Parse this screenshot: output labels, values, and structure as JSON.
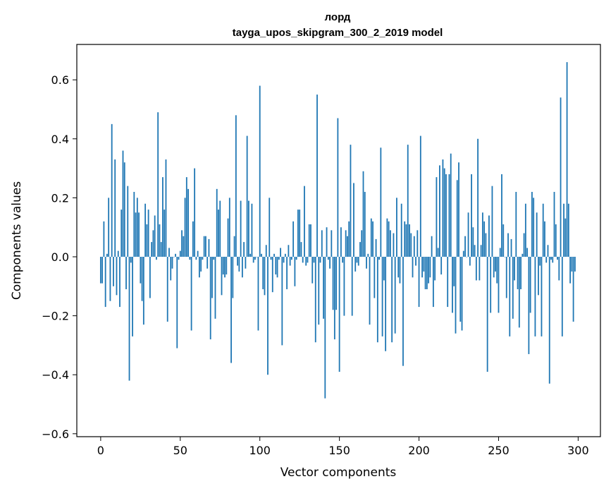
{
  "chart_data": {
    "type": "bar",
    "title": "лорд",
    "subtitle": "tayga_upos_skipgram_300_2_2019 model",
    "xlabel": "Vector components",
    "ylabel": "Components values",
    "xlim": [
      -15,
      314
    ],
    "ylim": [
      -0.61,
      0.72
    ],
    "xticks": [
      0,
      50,
      100,
      150,
      200,
      250,
      300
    ],
    "yticks": [
      -0.6,
      -0.4,
      -0.2,
      0.0,
      0.2,
      0.4,
      0.6
    ],
    "ytick_labels": [
      "−0.6",
      "−0.4",
      "−0.2",
      "0.0",
      "0.2",
      "0.4",
      "0.6"
    ],
    "xtick_labels": [
      "0",
      "50",
      "100",
      "150",
      "200",
      "250",
      "300"
    ],
    "grid": false,
    "bar_color": "#1f77b4",
    "values": [
      -0.09,
      -0.09,
      0.12,
      -0.17,
      0.01,
      0.2,
      -0.15,
      0.45,
      -0.1,
      0.33,
      -0.13,
      0.02,
      -0.17,
      0.16,
      0.36,
      0.32,
      -0.11,
      0.24,
      -0.42,
      -0.02,
      -0.27,
      0.22,
      0.15,
      0.2,
      0.15,
      -0.09,
      -0.15,
      -0.23,
      0.18,
      0.11,
      0.16,
      -0.14,
      0.05,
      0.09,
      0.14,
      -0.01,
      0.49,
      0.11,
      0.05,
      0.27,
      0.16,
      0.33,
      -0.22,
      0.03,
      -0.08,
      -0.04,
      0.0,
      0.01,
      -0.31,
      -0.01,
      0.02,
      0.09,
      0.07,
      0.2,
      0.27,
      0.23,
      -0.01,
      -0.25,
      0.12,
      0.3,
      -0.01,
      0.02,
      -0.07,
      -0.05,
      -0.01,
      0.07,
      0.07,
      -0.04,
      0.06,
      -0.28,
      -0.14,
      -0.01,
      -0.21,
      0.23,
      0.16,
      0.19,
      -0.13,
      -0.06,
      -0.07,
      -0.06,
      0.13,
      0.2,
      -0.36,
      -0.14,
      0.07,
      0.48,
      -0.03,
      -0.05,
      0.19,
      -0.07,
      0.05,
      -0.04,
      0.41,
      0.19,
      0.01,
      0.18,
      -0.02,
      -0.01,
      0.0,
      -0.25,
      0.58,
      0.01,
      -0.11,
      -0.13,
      0.04,
      -0.4,
      0.2,
      -0.01,
      -0.12,
      0.01,
      -0.06,
      -0.07,
      -0.01,
      0.03,
      -0.3,
      -0.02,
      0.01,
      -0.11,
      0.04,
      -0.03,
      -0.01,
      0.12,
      -0.1,
      -0.01,
      0.16,
      0.16,
      0.05,
      -0.02,
      0.24,
      -0.03,
      -0.02,
      0.11,
      0.11,
      -0.09,
      -0.02,
      -0.29,
      0.55,
      -0.23,
      -0.02,
      0.09,
      -0.21,
      -0.48,
      0.1,
      -0.01,
      -0.04,
      0.09,
      -0.18,
      -0.28,
      -0.18,
      0.47,
      -0.39,
      0.1,
      -0.02,
      -0.2,
      0.09,
      0.07,
      0.12,
      0.38,
      -0.2,
      0.25,
      -0.05,
      -0.02,
      -0.03,
      0.05,
      0.09,
      0.29,
      0.22,
      -0.04,
      0.01,
      -0.23,
      0.13,
      0.12,
      -0.14,
      0.06,
      -0.29,
      -0.01,
      0.37,
      -0.27,
      -0.08,
      -0.32,
      0.13,
      0.12,
      0.09,
      -0.29,
      0.08,
      -0.26,
      0.2,
      -0.07,
      -0.09,
      0.18,
      -0.37,
      0.12,
      0.11,
      0.38,
      0.11,
      0.08,
      -0.07,
      0.07,
      -0.03,
      0.09,
      -0.17,
      0.41,
      -0.07,
      -0.05,
      -0.11,
      -0.11,
      -0.09,
      -0.07,
      0.07,
      -0.17,
      -0.08,
      0.27,
      0.03,
      0.31,
      -0.06,
      0.33,
      0.3,
      0.28,
      -0.17,
      0.28,
      0.35,
      -0.19,
      -0.1,
      -0.26,
      0.26,
      0.32,
      -0.22,
      -0.25,
      0.02,
      0.07,
      0.0,
      0.15,
      -0.03,
      0.28,
      0.1,
      0.04,
      -0.08,
      0.4,
      -0.08,
      0.04,
      0.15,
      0.12,
      0.08,
      -0.39,
      0.14,
      -0.19,
      0.24,
      -0.07,
      -0.05,
      -0.09,
      -0.19,
      0.03,
      0.28,
      0.11,
      0.0,
      -0.14,
      0.08,
      -0.27,
      0.06,
      -0.21,
      -0.08,
      0.22,
      -0.11,
      -0.24,
      -0.11,
      0.01,
      0.08,
      0.18,
      0.03,
      -0.33,
      -0.19,
      0.22,
      0.2,
      -0.27,
      0.15,
      -0.13,
      -0.03,
      -0.27,
      0.18,
      0.12,
      -0.02,
      0.04,
      -0.43,
      -0.01,
      -0.02,
      0.22,
      0.11,
      -0.01,
      -0.08,
      0.54,
      -0.27,
      0.18,
      0.13,
      0.66,
      0.18,
      -0.09,
      -0.05,
      -0.22,
      -0.05
    ]
  }
}
